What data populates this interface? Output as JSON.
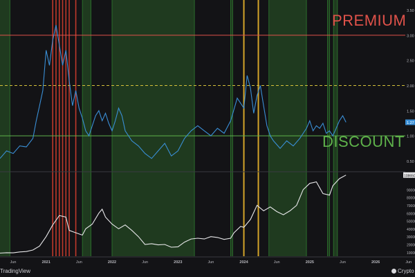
{
  "chart_data": {
    "type": "line",
    "x_tick_labels": [
      "Jun",
      "2021",
      "Jun",
      "2022",
      "Jun",
      "2023",
      "Jun",
      "2024",
      "Jun",
      "2025",
      "Jun",
      "2026",
      "Jun"
    ],
    "top_panel": {
      "y_tick_labels": [
        "0.50",
        "1.00",
        "1.50",
        "2.00",
        "2.50",
        "3.00",
        "3.50"
      ],
      "ylim": [
        0.3,
        3.7
      ],
      "premium_level": 3.0,
      "fair_level": 2.0,
      "discount_level": 1.0,
      "last_value_tag": "1.27",
      "series": [
        {
          "color": "#3a8fd6",
          "points": [
            [
              2020.3,
              0.55
            ],
            [
              2020.4,
              0.7
            ],
            [
              2020.5,
              0.65
            ],
            [
              2020.6,
              0.8
            ],
            [
              2020.7,
              0.78
            ],
            [
              2020.8,
              0.95
            ],
            [
              2020.85,
              1.3
            ],
            [
              2020.9,
              1.6
            ],
            [
              2020.95,
              1.9
            ],
            [
              2021.0,
              2.7
            ],
            [
              2021.05,
              2.4
            ],
            [
              2021.1,
              2.9
            ],
            [
              2021.15,
              3.2
            ],
            [
              2021.2,
              2.8
            ],
            [
              2021.25,
              2.4
            ],
            [
              2021.3,
              2.7
            ],
            [
              2021.35,
              2.1
            ],
            [
              2021.4,
              1.6
            ],
            [
              2021.45,
              1.9
            ],
            [
              2021.5,
              1.55
            ],
            [
              2021.55,
              1.35
            ],
            [
              2021.6,
              1.1
            ],
            [
              2021.65,
              1.0
            ],
            [
              2021.7,
              1.2
            ],
            [
              2021.75,
              1.4
            ],
            [
              2021.8,
              1.5
            ],
            [
              2021.85,
              1.3
            ],
            [
              2021.9,
              1.45
            ],
            [
              2021.95,
              1.25
            ],
            [
              2022.0,
              1.1
            ],
            [
              2022.05,
              1.3
            ],
            [
              2022.1,
              1.55
            ],
            [
              2022.15,
              1.4
            ],
            [
              2022.2,
              1.1
            ],
            [
              2022.3,
              0.9
            ],
            [
              2022.4,
              0.8
            ],
            [
              2022.5,
              0.65
            ],
            [
              2022.6,
              0.55
            ],
            [
              2022.7,
              0.7
            ],
            [
              2022.8,
              0.85
            ],
            [
              2022.9,
              0.6
            ],
            [
              2023.0,
              0.7
            ],
            [
              2023.1,
              0.95
            ],
            [
              2023.2,
              1.1
            ],
            [
              2023.3,
              1.2
            ],
            [
              2023.4,
              1.1
            ],
            [
              2023.5,
              1.0
            ],
            [
              2023.6,
              1.15
            ],
            [
              2023.7,
              1.05
            ],
            [
              2023.8,
              1.3
            ],
            [
              2023.9,
              1.75
            ],
            [
              2024.0,
              1.55
            ],
            [
              2024.05,
              2.2
            ],
            [
              2024.1,
              1.95
            ],
            [
              2024.15,
              1.45
            ],
            [
              2024.2,
              1.8
            ],
            [
              2024.25,
              2.0
            ],
            [
              2024.3,
              1.6
            ],
            [
              2024.35,
              1.2
            ],
            [
              2024.4,
              1.0
            ],
            [
              2024.45,
              0.9
            ],
            [
              2024.55,
              0.75
            ],
            [
              2024.65,
              0.9
            ],
            [
              2024.75,
              0.8
            ],
            [
              2024.85,
              0.95
            ],
            [
              2024.9,
              1.05
            ],
            [
              2024.95,
              1.15
            ],
            [
              2025.0,
              1.3
            ],
            [
              2025.05,
              1.1
            ],
            [
              2025.1,
              1.2
            ],
            [
              2025.15,
              1.15
            ],
            [
              2025.2,
              1.25
            ],
            [
              2025.25,
              1.05
            ],
            [
              2025.3,
              1.1
            ],
            [
              2025.35,
              1.0
            ],
            [
              2025.4,
              1.15
            ],
            [
              2025.45,
              1.3
            ],
            [
              2025.5,
              1.4
            ],
            [
              2025.55,
              1.27
            ]
          ]
        }
      ]
    },
    "bottom_panel": {
      "y_tick_labels": [
        "10000",
        "20000",
        "30000",
        "40000",
        "50000",
        "60000",
        "70000",
        "80000",
        "90000"
      ],
      "ylim": [
        5000,
        112000
      ],
      "last_value_tag": "108650",
      "series": [
        {
          "color": "#e8e8ea",
          "points": [
            [
              2020.3,
              9000
            ],
            [
              2020.4,
              9500
            ],
            [
              2020.5,
              9300
            ],
            [
              2020.6,
              10500
            ],
            [
              2020.7,
              11000
            ],
            [
              2020.8,
              13000
            ],
            [
              2020.9,
              18000
            ],
            [
              2021.0,
              30000
            ],
            [
              2021.1,
              45000
            ],
            [
              2021.2,
              57000
            ],
            [
              2021.3,
              55000
            ],
            [
              2021.35,
              38000
            ],
            [
              2021.45,
              35000
            ],
            [
              2021.55,
              32000
            ],
            [
              2021.6,
              40000
            ],
            [
              2021.7,
              46000
            ],
            [
              2021.8,
              60000
            ],
            [
              2021.85,
              65000
            ],
            [
              2021.9,
              55000
            ],
            [
              2022.0,
              46000
            ],
            [
              2022.1,
              40000
            ],
            [
              2022.2,
              45000
            ],
            [
              2022.3,
              38000
            ],
            [
              2022.4,
              30000
            ],
            [
              2022.5,
              20000
            ],
            [
              2022.6,
              21000
            ],
            [
              2022.7,
              19500
            ],
            [
              2022.8,
              20000
            ],
            [
              2022.9,
              16500
            ],
            [
              2023.0,
              17000
            ],
            [
              2023.1,
              23000
            ],
            [
              2023.2,
              27000
            ],
            [
              2023.3,
              28000
            ],
            [
              2023.4,
              27000
            ],
            [
              2023.5,
              30000
            ],
            [
              2023.6,
              29000
            ],
            [
              2023.7,
              26500
            ],
            [
              2023.8,
              28000
            ],
            [
              2023.85,
              35000
            ],
            [
              2023.95,
              43000
            ],
            [
              2024.0,
              42000
            ],
            [
              2024.1,
              52000
            ],
            [
              2024.2,
              70000
            ],
            [
              2024.3,
              63000
            ],
            [
              2024.4,
              68000
            ],
            [
              2024.5,
              62000
            ],
            [
              2024.6,
              58000
            ],
            [
              2024.7,
              63000
            ],
            [
              2024.8,
              70000
            ],
            [
              2024.9,
              90000
            ],
            [
              2025.0,
              98000
            ],
            [
              2025.1,
              100000
            ],
            [
              2025.2,
              85000
            ],
            [
              2025.3,
              83000
            ],
            [
              2025.35,
              95000
            ],
            [
              2025.45,
              104000
            ],
            [
              2025.55,
              108650
            ]
          ]
        }
      ]
    },
    "zones": {
      "green": [
        [
          2020.0,
          2020.45
        ],
        [
          2021.55,
          2021.68
        ],
        [
          2022.0,
          2023.25
        ],
        [
          2023.8,
          2023.83
        ],
        [
          2024.38,
          2024.95
        ],
        [
          2025.27,
          2025.3
        ],
        [
          2025.36,
          2025.42
        ]
      ],
      "red": [
        2021.1,
        2021.15,
        2021.2,
        2021.25,
        2021.3,
        2021.35,
        2021.45
      ],
      "yellow": [
        2024.0,
        2024.22
      ]
    },
    "colors": {
      "premium": "#e0524a",
      "discount": "#5fb34b",
      "fair": "#d6c23a",
      "zone_green": "#1f3a1f",
      "zone_red": "#c0392b",
      "zone_yellow": "#d4a52a",
      "tag_blue": "#3a8fd6"
    },
    "annotations": {
      "premium": "PREMIUM",
      "discount": "DISCOUNT"
    }
  },
  "branding": {
    "left": "TradingView",
    "right": "Crypto"
  }
}
